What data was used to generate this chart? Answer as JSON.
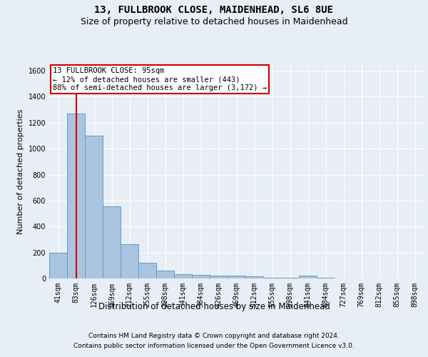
{
  "title": "13, FULLBROOK CLOSE, MAIDENHEAD, SL6 8UE",
  "subtitle": "Size of property relative to detached houses in Maidenhead",
  "xlabel": "Distribution of detached houses by size in Maidenhead",
  "ylabel": "Number of detached properties",
  "categories": [
    "41sqm",
    "83sqm",
    "126sqm",
    "169sqm",
    "212sqm",
    "255sqm",
    "298sqm",
    "341sqm",
    "384sqm",
    "426sqm",
    "469sqm",
    "512sqm",
    "555sqm",
    "598sqm",
    "641sqm",
    "684sqm",
    "727sqm",
    "769sqm",
    "812sqm",
    "855sqm",
    "898sqm"
  ],
  "values": [
    200,
    1270,
    1100,
    555,
    265,
    120,
    58,
    35,
    25,
    20,
    20,
    15,
    8,
    5,
    20,
    5,
    0,
    0,
    0,
    0,
    0
  ],
  "bar_color": "#aac4e0",
  "bar_edgecolor": "#5a9fc8",
  "property_line_x": 1.0,
  "property_line_color": "#cc0000",
  "annotation_text": "13 FULLBROOK CLOSE: 95sqm\n← 12% of detached houses are smaller (443)\n88% of semi-detached houses are larger (3,172) →",
  "annotation_box_color": "#cc0000",
  "ylim": [
    0,
    1650
  ],
  "yticks": [
    0,
    200,
    400,
    600,
    800,
    1000,
    1200,
    1400,
    1600
  ],
  "footer1": "Contains HM Land Registry data © Crown copyright and database right 2024.",
  "footer2": "Contains public sector information licensed under the Open Government Licence v3.0.",
  "bg_color": "#e8eef5",
  "plot_bg_color": "#e8eef5",
  "title_fontsize": 10,
  "subtitle_fontsize": 9,
  "tick_fontsize": 7,
  "ylabel_fontsize": 8,
  "xlabel_fontsize": 8.5,
  "footer_fontsize": 6.5,
  "annotation_fontsize": 7.5
}
